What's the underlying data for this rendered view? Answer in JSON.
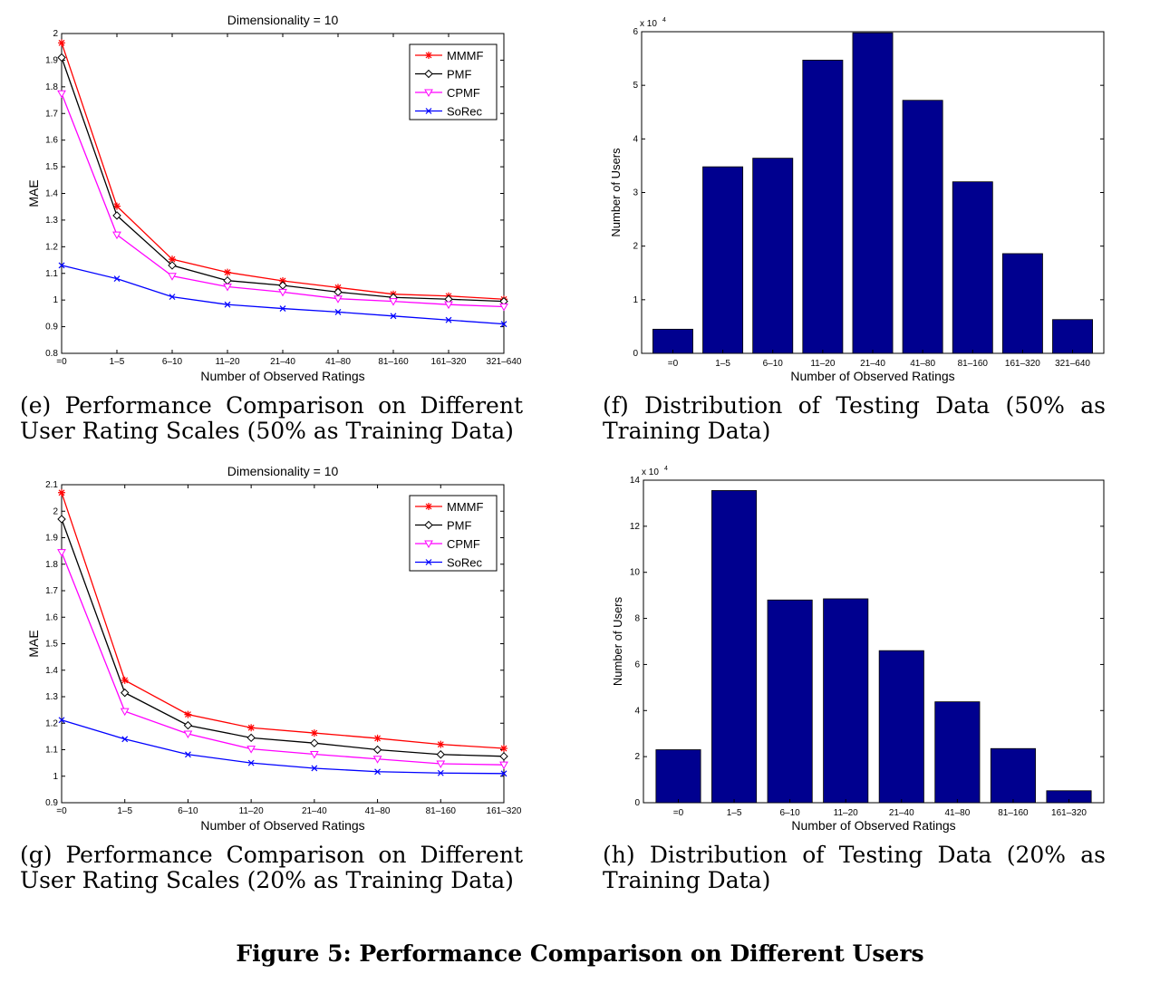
{
  "figure_title": "Figure 5: Performance Comparison on Different Users",
  "captions": {
    "e": "(e) Performance Comparison on Different User Rating Scales (50% as Training Data)",
    "f": "(f) Distribution of Testing Data (50% as Training Data)",
    "g": "(g) Performance Comparison on Different User Rating Scales (20% as Training Data)",
    "h": "(h) Distribution of Testing Data (20% as Training Data)"
  },
  "chart_data": [
    {
      "id": "e",
      "type": "line",
      "title": "Dimensionality = 10",
      "xlabel": "Number of Observed Ratings",
      "ylabel": "MAE",
      "categories": [
        "=0",
        "1–5",
        "6–10",
        "11–20",
        "21–40",
        "41–80",
        "81–160",
        "161–320",
        "321–640"
      ],
      "ylim": [
        0.8,
        2
      ],
      "yticks": [
        0.8,
        0.9,
        1,
        1.1,
        1.2,
        1.3,
        1.4,
        1.5,
        1.6,
        1.7,
        1.8,
        1.9,
        2
      ],
      "legend_position": "top-right",
      "grid": false,
      "series": [
        {
          "name": "MMMF",
          "color": "#ff0000",
          "marker": "star",
          "values": [
            1.965,
            1.352,
            1.153,
            1.104,
            1.072,
            1.047,
            1.022,
            1.015,
            1.003
          ]
        },
        {
          "name": "PMF",
          "color": "#000000",
          "marker": "diamond",
          "values": [
            1.91,
            1.317,
            1.13,
            1.073,
            1.055,
            1.03,
            1.01,
            1.003,
            0.995
          ]
        },
        {
          "name": "CPMF",
          "color": "#ff00ff",
          "marker": "triangle-down",
          "values": [
            1.775,
            1.245,
            1.09,
            1.05,
            1.03,
            1.005,
            0.995,
            0.983,
            0.975
          ]
        },
        {
          "name": "SoRec",
          "color": "#0000ff",
          "marker": "x",
          "values": [
            1.13,
            1.08,
            1.012,
            0.983,
            0.968,
            0.955,
            0.94,
            0.925,
            0.91
          ]
        }
      ]
    },
    {
      "id": "f",
      "type": "bar",
      "xlabel": "Number of Observed Ratings",
      "ylabel": "Number of Users",
      "scale_label": "x 10",
      "scale_exponent": "4",
      "categories": [
        "=0",
        "1–5",
        "6–10",
        "11–20",
        "21–40",
        "41–80",
        "81–160",
        "161–320",
        "321–640"
      ],
      "values": [
        0.45,
        3.48,
        3.64,
        5.47,
        5.98,
        4.72,
        3.2,
        1.86,
        0.63
      ],
      "ylim": [
        0,
        6
      ],
      "yticks": [
        0,
        1,
        2,
        3,
        4,
        5,
        6
      ],
      "bar_color": "#00008f",
      "grid": false
    },
    {
      "id": "g",
      "type": "line",
      "title": "Dimensionality = 10",
      "xlabel": "Number of Observed Ratings",
      "ylabel": "MAE",
      "categories": [
        "=0",
        "1–5",
        "6–10",
        "11–20",
        "21–40",
        "41–80",
        "81–160",
        "161–320"
      ],
      "ylim": [
        0.9,
        2.1
      ],
      "yticks": [
        0.9,
        1,
        1.1,
        1.2,
        1.3,
        1.4,
        1.5,
        1.6,
        1.7,
        1.8,
        1.9,
        2,
        2.1
      ],
      "legend_position": "top-right",
      "grid": false,
      "series": [
        {
          "name": "MMMF",
          "color": "#ff0000",
          "marker": "star",
          "values": [
            2.07,
            1.362,
            1.233,
            1.183,
            1.163,
            1.143,
            1.12,
            1.105
          ]
        },
        {
          "name": "PMF",
          "color": "#000000",
          "marker": "diamond",
          "values": [
            1.97,
            1.315,
            1.192,
            1.145,
            1.125,
            1.1,
            1.082,
            1.075
          ]
        },
        {
          "name": "CPMF",
          "color": "#ff00ff",
          "marker": "triangle-down",
          "values": [
            1.845,
            1.245,
            1.16,
            1.103,
            1.083,
            1.065,
            1.047,
            1.043
          ]
        },
        {
          "name": "SoRec",
          "color": "#0000ff",
          "marker": "x",
          "values": [
            1.212,
            1.14,
            1.082,
            1.05,
            1.03,
            1.017,
            1.012,
            1.01
          ]
        }
      ]
    },
    {
      "id": "h",
      "type": "bar",
      "xlabel": "Number of Observed Ratings",
      "ylabel": "Number of Users",
      "scale_label": "x 10",
      "scale_exponent": "4",
      "categories": [
        "=0",
        "1–5",
        "6–10",
        "11–20",
        "21–40",
        "41–80",
        "81–160",
        "161–320"
      ],
      "values": [
        2.3,
        13.55,
        8.8,
        8.85,
        6.6,
        4.38,
        2.35,
        0.52
      ],
      "ylim": [
        0,
        14
      ],
      "yticks": [
        0,
        2,
        4,
        6,
        8,
        10,
        12,
        14
      ],
      "bar_color": "#00008f",
      "grid": false
    }
  ]
}
